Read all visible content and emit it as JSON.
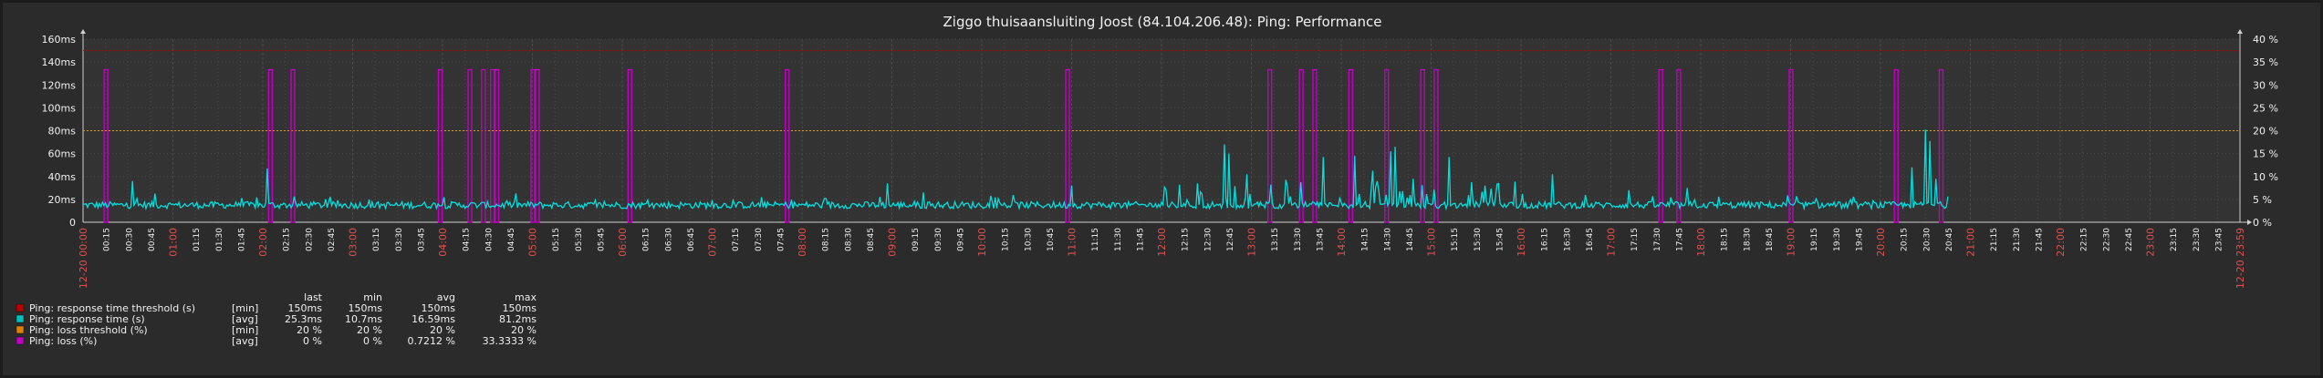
{
  "chart_data": {
    "type": "line",
    "title": "Ziggo thuisaansluiting Joost (84.104.206.48): Ping: Performance",
    "colors": {
      "background": "#2b2b2b",
      "plot_background": "#333333",
      "grid": "#4a4a4a",
      "text": "#f0f0f0",
      "highlight_text": "#e05050",
      "response_time_threshold": "#b80000",
      "response_time": "#00e0e0",
      "loss_threshold": "#e0a000",
      "loss": "#c000c0"
    },
    "left_axis": {
      "unit": "ms",
      "range": [
        0,
        160
      ],
      "ticks": [
        "0",
        "20ms",
        "40ms",
        "60ms",
        "80ms",
        "100ms",
        "120ms",
        "140ms",
        "160ms"
      ]
    },
    "right_axis": {
      "unit": "%",
      "range": [
        0,
        40
      ],
      "ticks": [
        "0 %",
        "5 %",
        "10 %",
        "15 %",
        "20 %",
        "25 %",
        "30 %",
        "35 %",
        "40 %"
      ]
    },
    "x_axis": {
      "start_label": "12-20 00:00",
      "end_label": "12-20 23:59",
      "tick_labels": [
        "00:15",
        "00:30",
        "00:45",
        "01:00",
        "01:15",
        "01:30",
        "01:45",
        "02:00",
        "02:15",
        "02:30",
        "02:45",
        "03:00",
        "03:15",
        "03:30",
        "03:45",
        "04:00",
        "04:15",
        "04:30",
        "04:45",
        "05:00",
        "05:15",
        "05:30",
        "05:45",
        "06:00",
        "06:15",
        "06:30",
        "06:45",
        "07:00",
        "07:15",
        "07:30",
        "07:45",
        "08:00",
        "08:15",
        "08:30",
        "08:45",
        "09:00",
        "09:15",
        "09:30",
        "09:45",
        "10:00",
        "10:15",
        "10:30",
        "10:45",
        "11:00",
        "11:15",
        "11:30",
        "11:45",
        "12:00",
        "12:15",
        "12:30",
        "12:45",
        "13:00",
        "13:15",
        "13:30",
        "13:45",
        "14:00",
        "14:15",
        "14:30",
        "14:45",
        "15:00",
        "15:15",
        "15:30",
        "15:45",
        "16:00",
        "16:15",
        "16:30",
        "16:45",
        "17:00",
        "17:15",
        "17:30",
        "17:45",
        "18:00",
        "18:15",
        "18:30",
        "18:45",
        "19:00",
        "19:15",
        "19:30",
        "19:45",
        "20:00",
        "20:15",
        "20:30",
        "20:45",
        "21:00",
        "21:15",
        "21:30",
        "21:45",
        "22:00",
        "22:15",
        "22:30",
        "22:45",
        "23:00",
        "23:15",
        "23:30",
        "23:45"
      ],
      "domain_hours": [
        0,
        24
      ]
    },
    "series": [
      {
        "name": "Ping: response time threshold (s)",
        "axis": "left",
        "value_ms": 150
      },
      {
        "name": "Ping: response time (s)",
        "axis": "left",
        "baseline_ms": 15,
        "data_end_hour": 20.75,
        "spikes": [
          {
            "h": 0.55,
            "ms": 36
          },
          {
            "h": 0.8,
            "ms": 25
          },
          {
            "h": 2.05,
            "ms": 47
          },
          {
            "h": 8.95,
            "ms": 34
          },
          {
            "h": 9.35,
            "ms": 26
          },
          {
            "h": 11.0,
            "ms": 32
          },
          {
            "h": 12.4,
            "ms": 34
          },
          {
            "h": 12.7,
            "ms": 68
          },
          {
            "h": 12.75,
            "ms": 60
          },
          {
            "h": 12.95,
            "ms": 42
          },
          {
            "h": 13.55,
            "ms": 35
          },
          {
            "h": 13.8,
            "ms": 57
          },
          {
            "h": 14.15,
            "ms": 58
          },
          {
            "h": 14.35,
            "ms": 45
          },
          {
            "h": 14.55,
            "ms": 62
          },
          {
            "h": 14.6,
            "ms": 66
          },
          {
            "h": 14.8,
            "ms": 38
          },
          {
            "h": 15.2,
            "ms": 57
          },
          {
            "h": 15.45,
            "ms": 35
          },
          {
            "h": 15.6,
            "ms": 32
          },
          {
            "h": 16.35,
            "ms": 42
          },
          {
            "h": 17.2,
            "ms": 28
          },
          {
            "h": 17.85,
            "ms": 30
          },
          {
            "h": 20.35,
            "ms": 48
          },
          {
            "h": 20.5,
            "ms": 81
          },
          {
            "h": 20.55,
            "ms": 71
          },
          {
            "h": 20.62,
            "ms": 38
          }
        ]
      },
      {
        "name": "Ping: loss threshold (%)",
        "axis": "right",
        "value_pct": 20
      },
      {
        "name": "Ping: loss (%)",
        "axis": "right",
        "value_pct": 33.3333,
        "events_hour": [
          0.25,
          2.08,
          2.33,
          3.97,
          4.3,
          4.45,
          4.55,
          4.6,
          5.0,
          5.05,
          6.08,
          7.83,
          10.95,
          13.2,
          13.55,
          13.7,
          14.1,
          14.5,
          14.9,
          15.05,
          17.55,
          17.75,
          19.0,
          20.17,
          20.67
        ]
      }
    ],
    "legend": [
      {
        "color": "#b80000",
        "label": "Ping: response time threshold (s)",
        "func": "[min]",
        "last": "150ms",
        "min": "150ms",
        "avg": "150ms",
        "max": "150ms"
      },
      {
        "color": "#00c0c0",
        "label": "Ping: response time (s)",
        "func": "[avg]",
        "last": "25.3ms",
        "min": "10.7ms",
        "avg": "16.59ms",
        "max": "81.2ms"
      },
      {
        "color": "#e08000",
        "label": "Ping: loss threshold (%)",
        "func": "[min]",
        "last": "20 %",
        "min": "20 %",
        "avg": "20 %",
        "max": "20 %"
      },
      {
        "color": "#c000c0",
        "label": "Ping: loss (%)",
        "func": "[avg]",
        "last": "0 %",
        "min": "0 %",
        "avg": "0.7212 %",
        "max": "33.3333 %"
      }
    ],
    "legend_headers": {
      "last": "last",
      "min": "min",
      "avg": "avg",
      "max": "max"
    },
    "grid": true
  }
}
